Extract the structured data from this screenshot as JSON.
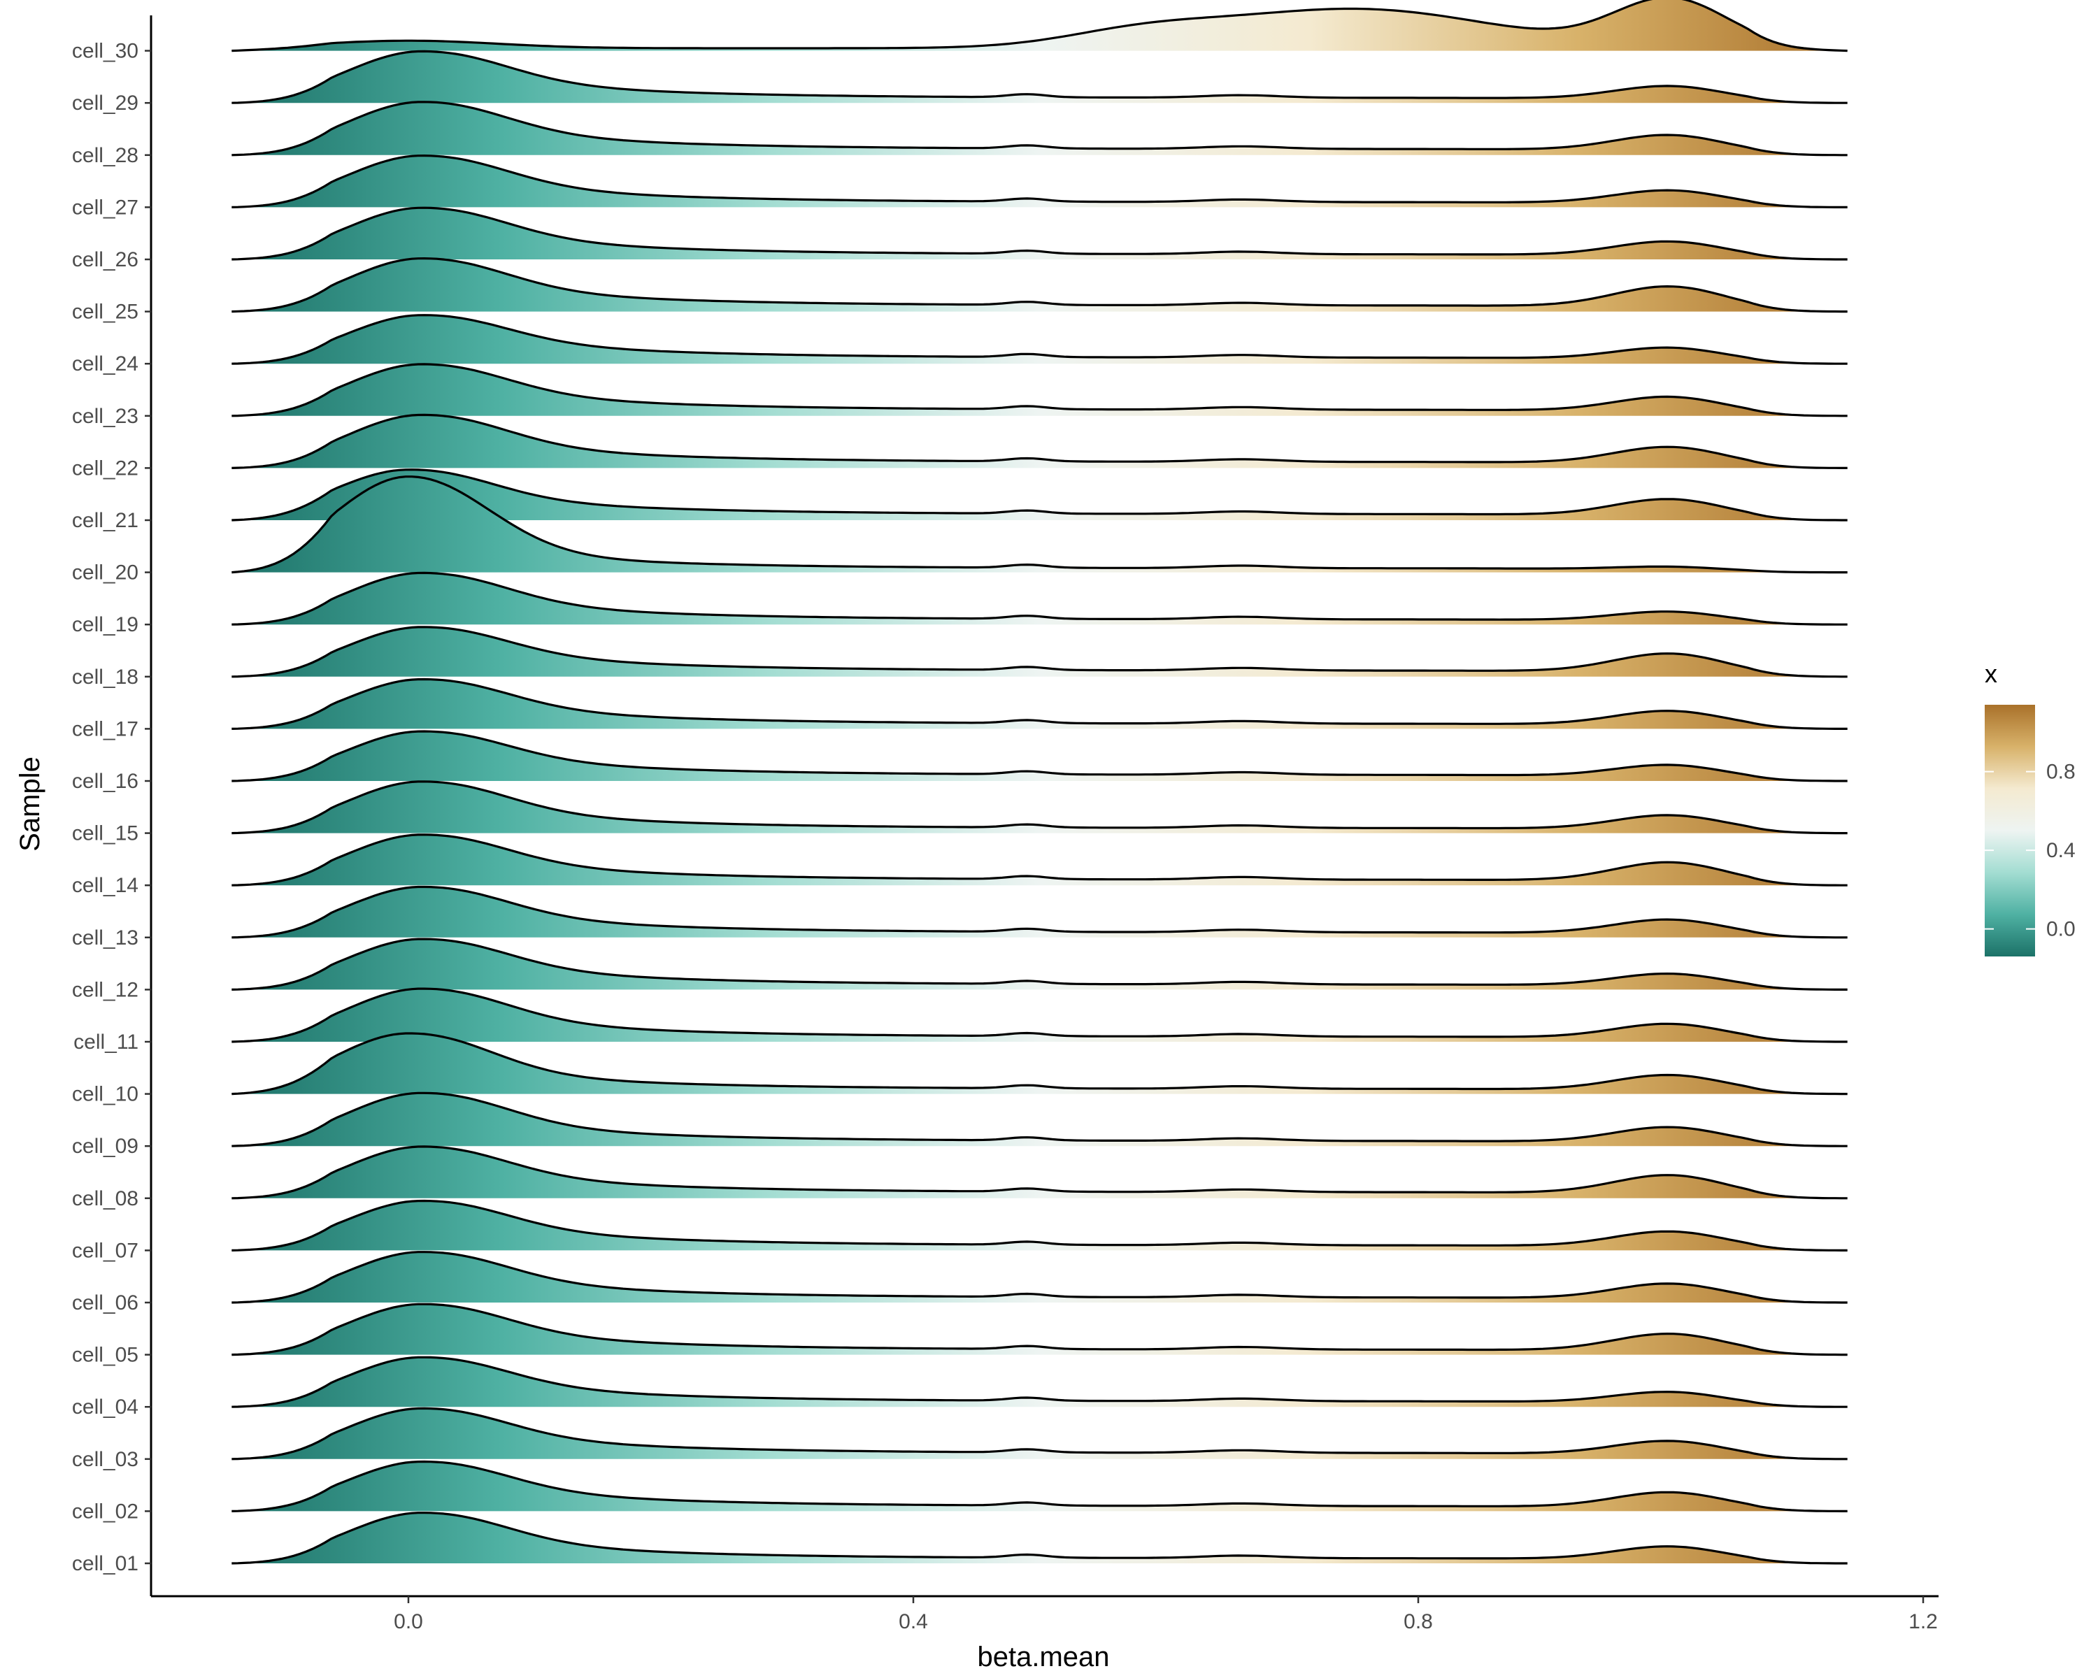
{
  "chart_data": {
    "type": "ridgeline",
    "title": "",
    "xlabel": "beta.mean",
    "ylabel": "Sample",
    "xlim": [
      -0.2,
      1.2
    ],
    "x_ticks": [
      0.0,
      0.4,
      0.8,
      1.2
    ],
    "x_tick_labels": [
      "0.0",
      "0.4",
      "0.8",
      "1.2"
    ],
    "density_x_range": [
      -0.14,
      1.14
    ],
    "grid": false,
    "categories": [
      "cell_01",
      "cell_02",
      "cell_03",
      "cell_04",
      "cell_05",
      "cell_06",
      "cell_07",
      "cell_08",
      "cell_09",
      "cell_10",
      "cell_11",
      "cell_12",
      "cell_13",
      "cell_14",
      "cell_15",
      "cell_16",
      "cell_17",
      "cell_18",
      "cell_19",
      "cell_20",
      "cell_21",
      "cell_22",
      "cell_23",
      "cell_24",
      "cell_25",
      "cell_26",
      "cell_27",
      "cell_28",
      "cell_29",
      "cell_30"
    ],
    "series": [
      {
        "peak_x": 0.01,
        "low_peak": 1.0,
        "high_peak": 0.32,
        "mid_level": 0.1
      },
      {
        "peak_x": 0.01,
        "low_peak": 0.98,
        "high_peak": 0.36,
        "mid_level": 0.1
      },
      {
        "peak_x": 0.01,
        "low_peak": 1.0,
        "high_peak": 0.34,
        "mid_level": 0.12
      },
      {
        "peak_x": 0.01,
        "low_peak": 0.98,
        "high_peak": 0.28,
        "mid_level": 0.11
      },
      {
        "peak_x": 0.01,
        "low_peak": 1.0,
        "high_peak": 0.4,
        "mid_level": 0.1
      },
      {
        "peak_x": 0.01,
        "low_peak": 1.0,
        "high_peak": 0.36,
        "mid_level": 0.1
      },
      {
        "peak_x": 0.01,
        "low_peak": 0.98,
        "high_peak": 0.36,
        "mid_level": 0.1
      },
      {
        "peak_x": 0.01,
        "low_peak": 1.02,
        "high_peak": 0.44,
        "mid_level": 0.12
      },
      {
        "peak_x": 0.01,
        "low_peak": 1.05,
        "high_peak": 0.36,
        "mid_level": 0.1
      },
      {
        "peak_x": 0.0,
        "low_peak": 1.2,
        "high_peak": 0.36,
        "mid_level": 0.1
      },
      {
        "peak_x": 0.01,
        "low_peak": 1.05,
        "high_peak": 0.34,
        "mid_level": 0.1
      },
      {
        "peak_x": 0.01,
        "low_peak": 1.0,
        "high_peak": 0.3,
        "mid_level": 0.1
      },
      {
        "peak_x": 0.01,
        "low_peak": 1.0,
        "high_peak": 0.34,
        "mid_level": 0.1
      },
      {
        "peak_x": 0.01,
        "low_peak": 1.0,
        "high_peak": 0.44,
        "mid_level": 0.11
      },
      {
        "peak_x": 0.01,
        "low_peak": 1.02,
        "high_peak": 0.34,
        "mid_level": 0.1
      },
      {
        "peak_x": 0.01,
        "low_peak": 0.98,
        "high_peak": 0.3,
        "mid_level": 0.12
      },
      {
        "peak_x": 0.01,
        "low_peak": 0.98,
        "high_peak": 0.34,
        "mid_level": 0.1
      },
      {
        "peak_x": 0.01,
        "low_peak": 0.98,
        "high_peak": 0.44,
        "mid_level": 0.12
      },
      {
        "peak_x": 0.01,
        "low_peak": 1.02,
        "high_peak": 0.24,
        "mid_level": 0.1
      },
      {
        "peak_x": 0.0,
        "low_peak": 1.9,
        "high_peak": 0.1,
        "mid_level": 0.08
      },
      {
        "peak_x": 0.0,
        "low_peak": 1.0,
        "high_peak": 0.4,
        "mid_level": 0.12
      },
      {
        "peak_x": 0.01,
        "low_peak": 1.05,
        "high_peak": 0.4,
        "mid_level": 0.12
      },
      {
        "peak_x": 0.01,
        "low_peak": 1.02,
        "high_peak": 0.36,
        "mid_level": 0.12
      },
      {
        "peak_x": 0.01,
        "low_peak": 0.96,
        "high_peak": 0.3,
        "mid_level": 0.12
      },
      {
        "peak_x": 0.01,
        "low_peak": 1.05,
        "high_peak": 0.48,
        "mid_level": 0.12
      },
      {
        "peak_x": 0.01,
        "low_peak": 1.02,
        "high_peak": 0.34,
        "mid_level": 0.1
      },
      {
        "peak_x": 0.01,
        "low_peak": 1.02,
        "high_peak": 0.32,
        "mid_level": 0.1
      },
      {
        "peak_x": 0.01,
        "low_peak": 1.05,
        "high_peak": 0.38,
        "mid_level": 0.12
      },
      {
        "peak_x": 0.01,
        "low_peak": 1.02,
        "high_peak": 0.32,
        "mid_level": 0.1
      },
      {
        "peak_x": 0.0,
        "low_peak": 0.15,
        "high_peak": 0.95,
        "mid_level": 0.0,
        "profile": "bimodal-high",
        "mid_peak_x": 0.75,
        "mid_peak": 0.78
      }
    ],
    "fill": {
      "type": "gradient-by-x",
      "legend_title": "x",
      "legend_ticks": [
        0.0,
        0.4,
        0.8
      ],
      "legend_tick_labels": [
        "0.0",
        "0.4",
        "0.8"
      ],
      "legend_range": [
        -0.14,
        1.14
      ],
      "colors": [
        "#1c7268",
        "#4fb1a3",
        "#a3ddd2",
        "#eef4f2",
        "#f4ead0",
        "#d8b26a",
        "#a9712a"
      ]
    },
    "line_color": "#000000"
  }
}
